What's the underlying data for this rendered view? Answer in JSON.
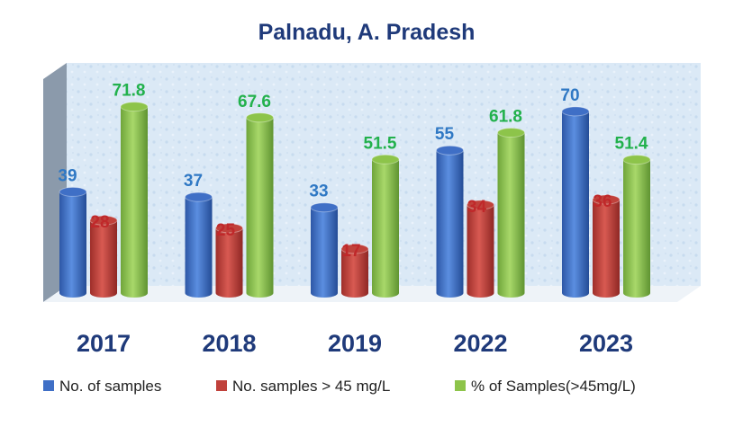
{
  "chart_data": {
    "type": "bar",
    "title": "Palnadu, A. Pradesh",
    "categories": [
      "2017",
      "2018",
      "2019",
      "2022",
      "2023"
    ],
    "series": [
      {
        "name": "No. of samples",
        "color": "#3f6fc6",
        "label_color": "#2f78c4",
        "values": [
          39,
          37,
          33,
          55,
          70
        ]
      },
      {
        "name": "No. samples > 45 mg/L",
        "color": "#c0413b",
        "label_color": "#c0282a",
        "values": [
          28,
          25,
          17,
          34,
          36
        ]
      },
      {
        "name": "% of Samples(>45mg/L)",
        "color": "#8dc44a",
        "label_color": "#22b14c",
        "values": [
          71.8,
          67.6,
          51.5,
          61.8,
          51.4
        ]
      }
    ],
    "ylim": [
      0,
      80
    ],
    "legend_position": "bottom",
    "grid": false
  }
}
